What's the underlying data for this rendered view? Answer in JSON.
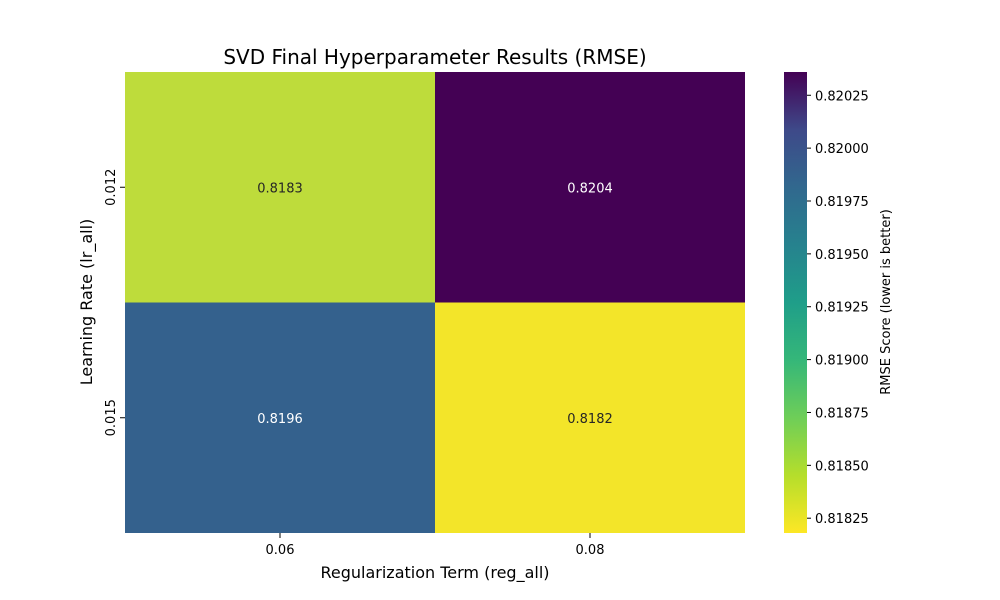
{
  "chart_data": {
    "type": "heatmap",
    "title": "SVD Final Hyperparameter Results (RMSE)",
    "xlabel": "Regularization Term (reg_all)",
    "ylabel": "Learning Rate (lr_all)",
    "x_categories": [
      "0.06",
      "0.08"
    ],
    "y_categories": [
      "0.012",
      "0.015"
    ],
    "values": [
      [
        0.8183,
        0.8204
      ],
      [
        0.8196,
        0.8182
      ]
    ],
    "annotations": [
      [
        "0.8183",
        "0.8204"
      ],
      [
        "0.8196",
        "0.8182"
      ]
    ],
    "colormap": "viridis_r",
    "colorbar": {
      "label": "RMSE Score (lower is better)",
      "range": [
        0.81818,
        0.82036
      ],
      "ticks": [
        "0.82025",
        "0.82000",
        "0.81975",
        "0.81950",
        "0.81925",
        "0.81900",
        "0.81875",
        "0.81850",
        "0.81825"
      ]
    }
  }
}
